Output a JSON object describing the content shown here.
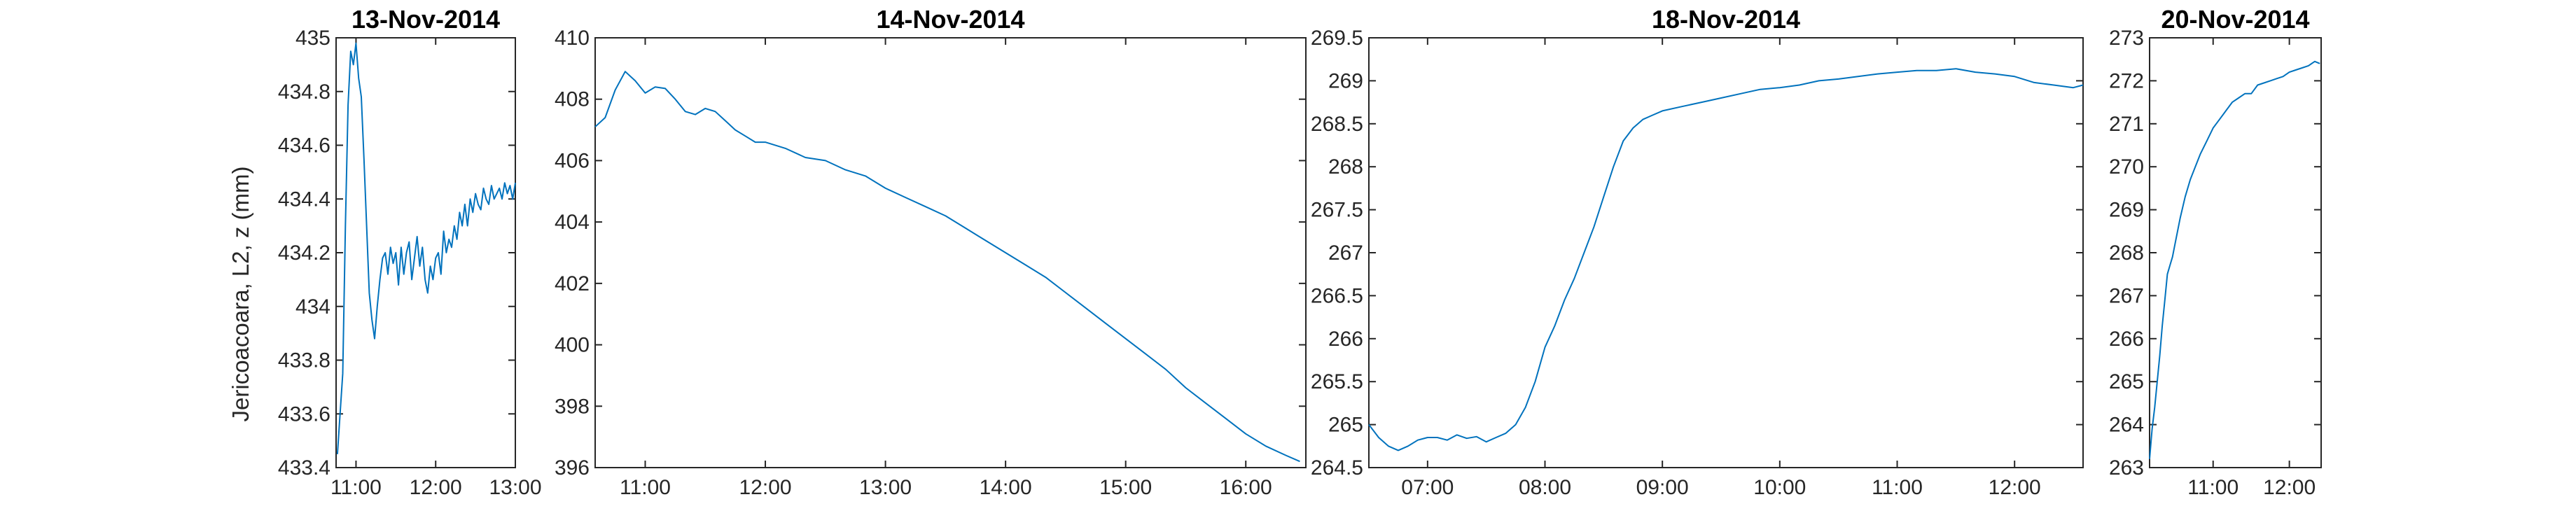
{
  "figure": {
    "ylabel": "Jericoacoara, L2, z (mm)"
  },
  "chart_data": [
    {
      "type": "line",
      "title": "13-Nov-2014",
      "xlabel": "",
      "ylabel": "Jericoacoara, L2, z (mm)",
      "xlim": [
        "10:45",
        "13:00"
      ],
      "ylim": [
        433.4,
        435
      ],
      "xticks": [
        "11:00",
        "12:00",
        "13:00"
      ],
      "yticks": [
        433.4,
        433.6,
        433.8,
        434,
        434.2,
        434.4,
        434.6,
        434.8,
        435
      ],
      "ytick_labels": [
        "433.4",
        "433.6",
        "433.8",
        "434",
        "434.2",
        "434.4",
        "434.6",
        "434.8",
        "435"
      ],
      "color": "#0072BD",
      "grid": false,
      "series": [
        {
          "x": [
            "10:46",
            "10:48",
            "10:50",
            "10:52",
            "10:54",
            "10:56",
            "10:58",
            "11:00",
            "11:02",
            "11:04",
            "11:06",
            "11:08",
            "11:10",
            "11:12",
            "11:14",
            "11:16",
            "11:18",
            "11:20",
            "11:22",
            "11:24",
            "11:26",
            "11:28",
            "11:30",
            "11:32",
            "11:34",
            "11:36",
            "11:38",
            "11:40",
            "11:42",
            "11:44",
            "11:46",
            "11:48",
            "11:50",
            "11:52",
            "11:54",
            "11:56",
            "11:58",
            "12:00",
            "12:02",
            "12:04",
            "12:06",
            "12:08",
            "12:10",
            "12:12",
            "12:14",
            "12:16",
            "12:18",
            "12:20",
            "12:22",
            "12:24",
            "12:26",
            "12:28",
            "12:30",
            "12:32",
            "12:34",
            "12:36",
            "12:38",
            "12:40",
            "12:42",
            "12:44",
            "12:46",
            "12:48",
            "12:50",
            "12:52",
            "12:54",
            "12:56",
            "12:58",
            "13:00"
          ],
          "y": [
            433.45,
            433.6,
            433.75,
            434.3,
            434.75,
            434.95,
            434.9,
            434.98,
            434.85,
            434.78,
            434.55,
            434.3,
            434.05,
            433.95,
            433.88,
            434.0,
            434.1,
            434.18,
            434.2,
            434.12,
            434.22,
            434.16,
            434.2,
            434.08,
            434.22,
            434.12,
            434.2,
            434.24,
            434.1,
            434.18,
            434.26,
            434.15,
            434.22,
            434.1,
            434.05,
            434.15,
            434.1,
            434.18,
            434.2,
            434.12,
            434.28,
            434.2,
            434.25,
            434.22,
            434.3,
            434.25,
            434.35,
            434.3,
            434.38,
            434.3,
            434.4,
            434.35,
            434.42,
            434.38,
            434.36,
            434.44,
            434.4,
            434.38,
            434.45,
            434.4,
            434.42,
            434.44,
            434.4,
            434.46,
            434.42,
            434.45,
            434.4,
            434.46
          ]
        }
      ]
    },
    {
      "type": "line",
      "title": "14-Nov-2014",
      "xlabel": "",
      "ylabel": "",
      "xlim": [
        "10:35",
        "16:30"
      ],
      "ylim": [
        396,
        410
      ],
      "xticks": [
        "11:00",
        "12:00",
        "13:00",
        "14:00",
        "15:00",
        "16:00"
      ],
      "yticks": [
        396,
        398,
        400,
        402,
        404,
        406,
        408,
        410
      ],
      "ytick_labels": [
        "396",
        "398",
        "400",
        "402",
        "404",
        "406",
        "408",
        "410"
      ],
      "color": "#0072BD",
      "grid": false,
      "series": [
        {
          "x": [
            "10:35",
            "10:40",
            "10:45",
            "10:50",
            "10:55",
            "11:00",
            "11:05",
            "11:10",
            "11:15",
            "11:20",
            "11:25",
            "11:30",
            "11:35",
            "11:40",
            "11:45",
            "11:50",
            "11:55",
            "12:00",
            "12:10",
            "12:20",
            "12:30",
            "12:40",
            "12:50",
            "13:00",
            "13:10",
            "13:20",
            "13:30",
            "13:40",
            "13:50",
            "14:00",
            "14:10",
            "14:20",
            "14:30",
            "14:40",
            "14:50",
            "15:00",
            "15:10",
            "15:20",
            "15:30",
            "15:40",
            "15:50",
            "16:00",
            "16:10",
            "16:20",
            "16:27"
          ],
          "y": [
            407.1,
            407.4,
            408.3,
            408.9,
            408.6,
            408.2,
            408.4,
            408.35,
            408.0,
            407.6,
            407.5,
            407.7,
            407.6,
            407.3,
            407.0,
            406.8,
            406.6,
            406.6,
            406.4,
            406.1,
            406.0,
            405.7,
            405.5,
            405.1,
            404.8,
            404.5,
            404.2,
            403.8,
            403.4,
            403.0,
            402.6,
            402.2,
            401.7,
            401.2,
            400.7,
            400.2,
            399.7,
            399.2,
            398.6,
            398.1,
            397.6,
            397.1,
            396.7,
            396.4,
            396.2
          ]
        }
      ]
    },
    {
      "type": "line",
      "title": "18-Nov-2014",
      "xlabel": "",
      "ylabel": "",
      "xlim": [
        "06:30",
        "12:35"
      ],
      "ylim": [
        264.5,
        269.5
      ],
      "xticks": [
        "07:00",
        "08:00",
        "09:00",
        "10:00",
        "11:00",
        "12:00"
      ],
      "yticks": [
        264.5,
        265,
        265.5,
        266,
        266.5,
        267,
        267.5,
        268,
        268.5,
        269,
        269.5
      ],
      "ytick_labels": [
        "264.5",
        "265",
        "265.5",
        "266",
        "266.5",
        "267",
        "267.5",
        "268",
        "268.5",
        "269",
        "269.5"
      ],
      "color": "#0072BD",
      "grid": false,
      "series": [
        {
          "x": [
            "06:30",
            "06:35",
            "06:40",
            "06:45",
            "06:50",
            "06:55",
            "07:00",
            "07:05",
            "07:10",
            "07:15",
            "07:20",
            "07:25",
            "07:30",
            "07:35",
            "07:40",
            "07:45",
            "07:50",
            "07:55",
            "08:00",
            "08:05",
            "08:10",
            "08:15",
            "08:20",
            "08:25",
            "08:30",
            "08:35",
            "08:40",
            "08:45",
            "08:50",
            "08:55",
            "09:00",
            "09:10",
            "09:20",
            "09:30",
            "09:40",
            "09:50",
            "10:00",
            "10:10",
            "10:20",
            "10:30",
            "10:40",
            "10:50",
            "11:00",
            "11:10",
            "11:20",
            "11:30",
            "11:40",
            "11:50",
            "12:00",
            "12:10",
            "12:20",
            "12:30",
            "12:35"
          ],
          "y": [
            265.0,
            264.85,
            264.75,
            264.7,
            264.75,
            264.82,
            264.85,
            264.85,
            264.82,
            264.88,
            264.84,
            264.86,
            264.8,
            264.85,
            264.9,
            265.0,
            265.2,
            265.5,
            265.9,
            266.15,
            266.45,
            266.7,
            267.0,
            267.3,
            267.65,
            268.0,
            268.3,
            268.45,
            268.55,
            268.6,
            268.65,
            268.7,
            268.75,
            268.8,
            268.85,
            268.9,
            268.92,
            268.95,
            269.0,
            269.02,
            269.05,
            269.08,
            269.1,
            269.12,
            269.12,
            269.14,
            269.1,
            269.08,
            269.05,
            268.98,
            268.95,
            268.92,
            268.95
          ]
        }
      ]
    },
    {
      "type": "line",
      "title": "20-Nov-2014",
      "xlabel": "",
      "ylabel": "",
      "xlim": [
        "10:10",
        "12:25"
      ],
      "ylim": [
        263,
        273
      ],
      "xticks": [
        "11:00",
        "12:00"
      ],
      "yticks": [
        263,
        264,
        265,
        266,
        267,
        268,
        269,
        270,
        271,
        272,
        273
      ],
      "ytick_labels": [
        "263",
        "264",
        "265",
        "266",
        "267",
        "268",
        "269",
        "270",
        "271",
        "272",
        "273"
      ],
      "color": "#0072BD",
      "grid": false,
      "series": [
        {
          "x": [
            "10:10",
            "10:12",
            "10:14",
            "10:16",
            "10:18",
            "10:20",
            "10:22",
            "10:24",
            "10:26",
            "10:28",
            "10:30",
            "10:34",
            "10:38",
            "10:42",
            "10:46",
            "10:50",
            "10:55",
            "11:00",
            "11:05",
            "11:10",
            "11:15",
            "11:20",
            "11:25",
            "11:30",
            "11:35",
            "11:40",
            "11:45",
            "11:50",
            "11:55",
            "12:00",
            "12:05",
            "12:10",
            "12:15",
            "12:20",
            "12:24"
          ],
          "y": [
            263.2,
            263.9,
            264.4,
            265.0,
            265.6,
            266.3,
            266.9,
            267.5,
            267.7,
            267.9,
            268.2,
            268.8,
            269.3,
            269.7,
            270.0,
            270.3,
            270.6,
            270.9,
            271.1,
            271.3,
            271.5,
            271.6,
            271.7,
            271.7,
            271.9,
            271.95,
            272.0,
            272.05,
            272.1,
            272.2,
            272.25,
            272.3,
            272.35,
            272.45,
            272.4
          ]
        }
      ]
    }
  ]
}
